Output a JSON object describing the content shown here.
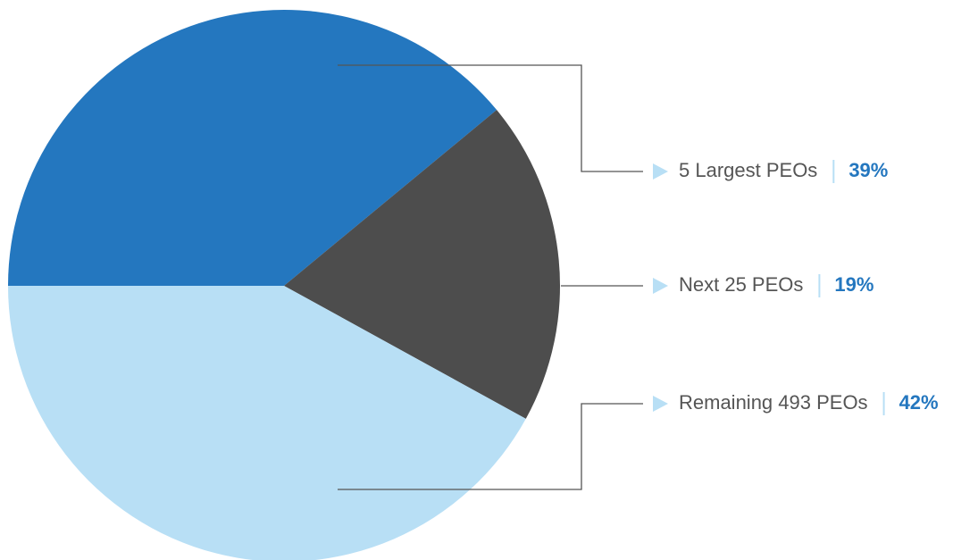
{
  "chart_data": {
    "type": "pie",
    "categories": [
      "5 Largest PEOs",
      "Next 25 PEOs",
      "Remaining 493 PEOs"
    ],
    "values": [
      39,
      19,
      42
    ],
    "value_labels": [
      "39%",
      "19%",
      "42%"
    ],
    "colors": [
      "#2477bf",
      "#4d4d4d",
      "#b8dff5"
    ]
  }
}
